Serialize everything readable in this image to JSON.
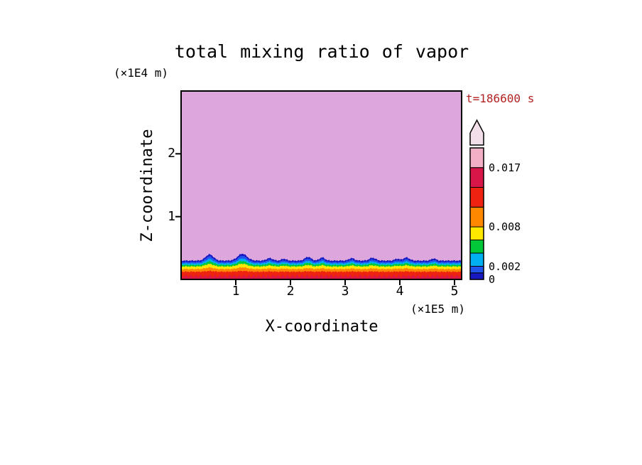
{
  "figure": {
    "title": "total mixing ratio of vapor",
    "time_label": "t=186600 s",
    "time_label_color": "#B22222",
    "y_unit_label": "(×1E4 m)",
    "x_unit_label": "(×1E5 m)",
    "xlabel": "X-coordinate",
    "ylabel": "Z-coordinate"
  },
  "chart_data": {
    "type": "heatmap",
    "title": "total mixing ratio of vapor",
    "xlabel": "X-coordinate",
    "ylabel": "Z-coordinate",
    "x_units": "(×1E5 m)",
    "y_units": "(×1E4 m)",
    "time_annotation": "t=186600 s",
    "xlim": [
      0,
      5.13
    ],
    "ylim": [
      0,
      3
    ],
    "x_ticks": [
      1,
      2,
      3,
      4,
      5
    ],
    "y_ticks": [
      1,
      2
    ],
    "grid": false,
    "legend_position": "right-colorbar",
    "upper_field_color": "#DDA6DD",
    "colorbar": {
      "min": 0,
      "max": 0.02,
      "overflow_arrow_color": "#F2DFEA",
      "tick_labels": [
        {
          "value": 0.017,
          "label": "0.017"
        },
        {
          "value": 0.008,
          "label": "0.008"
        },
        {
          "value": 0.002,
          "label": "0.002"
        },
        {
          "value": 0,
          "label": "0"
        }
      ],
      "segments": [
        {
          "from": 0,
          "to": 0.001,
          "color": "#1818C0"
        },
        {
          "from": 0.001,
          "to": 0.002,
          "color": "#2255EE"
        },
        {
          "from": 0.002,
          "to": 0.004,
          "color": "#00B0F0"
        },
        {
          "from": 0.004,
          "to": 0.006,
          "color": "#00C838"
        },
        {
          "from": 0.006,
          "to": 0.008,
          "color": "#FFE800"
        },
        {
          "from": 0.008,
          "to": 0.011,
          "color": "#FF8800"
        },
        {
          "from": 0.011,
          "to": 0.014,
          "color": "#EE2211"
        },
        {
          "from": 0.014,
          "to": 0.017,
          "color": "#D81648"
        },
        {
          "from": 0.017,
          "to": 0.02,
          "color": "#F2B0C6"
        }
      ]
    },
    "surface_layers": [
      {
        "name": "dark-blue",
        "color": "#1818C0",
        "top": 0.3,
        "bump_scale": 1.0
      },
      {
        "name": "blue",
        "color": "#2255EE",
        "top": 0.278,
        "bump_scale": 0.9
      },
      {
        "name": "cyan",
        "color": "#00B0F0",
        "top": 0.256,
        "bump_scale": 0.7
      },
      {
        "name": "green",
        "color": "#00C838",
        "top": 0.232,
        "bump_scale": 0.55
      },
      {
        "name": "yellow",
        "color": "#FFE800",
        "top": 0.206,
        "bump_scale": 0.4
      },
      {
        "name": "orange",
        "color": "#FF8800",
        "top": 0.165,
        "bump_scale": 0.25
      },
      {
        "name": "red",
        "color": "#EE2211",
        "top": 0.122,
        "bump_scale": 0.12
      },
      {
        "name": "crimson",
        "color": "#D81648",
        "top": 0.05,
        "bump_scale": 0.0,
        "noisy": true
      }
    ],
    "bumps": [
      {
        "x": 0.52,
        "amp": 0.1,
        "w": 0.1
      },
      {
        "x": 1.12,
        "amp": 0.11,
        "w": 0.12
      },
      {
        "x": 1.62,
        "amp": 0.04,
        "w": 0.08
      },
      {
        "x": 1.88,
        "amp": 0.03,
        "w": 0.06
      },
      {
        "x": 2.32,
        "amp": 0.06,
        "w": 0.08
      },
      {
        "x": 2.58,
        "amp": 0.05,
        "w": 0.07
      },
      {
        "x": 3.12,
        "amp": 0.04,
        "w": 0.07
      },
      {
        "x": 3.5,
        "amp": 0.045,
        "w": 0.08
      },
      {
        "x": 3.95,
        "amp": 0.03,
        "w": 0.06
      },
      {
        "x": 4.12,
        "amp": 0.05,
        "w": 0.08
      },
      {
        "x": 4.62,
        "amp": 0.035,
        "w": 0.06
      }
    ]
  }
}
